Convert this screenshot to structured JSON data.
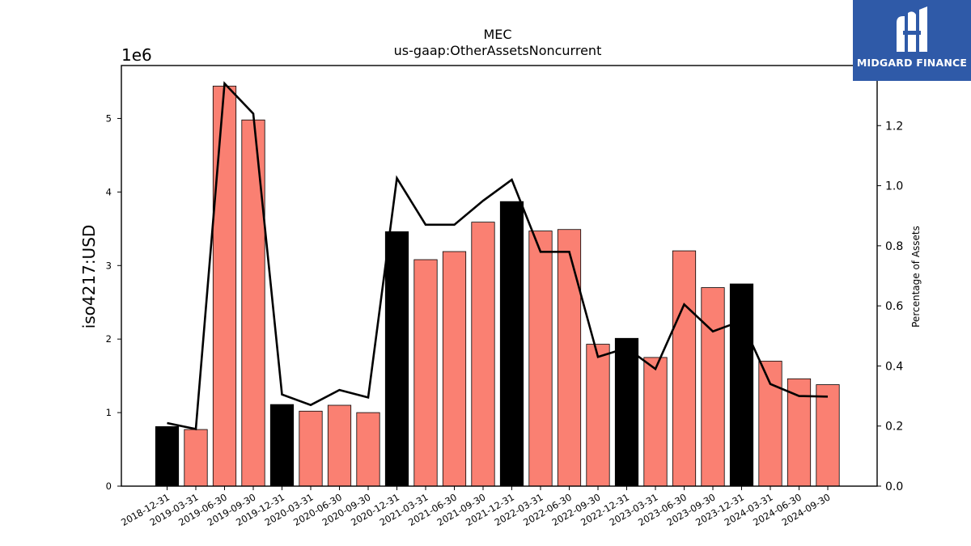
{
  "brand": {
    "name": "MIDGARD FINANCE"
  },
  "chart_data": {
    "type": "bar",
    "title": "MEC",
    "subtitle": "us-gaap:OtherAssetsNoncurrent",
    "ylabel": "iso4217:USD",
    "ylabel_right": "Percentage of Assets",
    "y_offset_label": "1e6",
    "ylim": [
      0,
      5.72
    ],
    "ylim_right": [
      0,
      1.4
    ],
    "yticks": [
      0,
      1,
      2,
      3,
      4,
      5
    ],
    "yticks_right": [
      "0.0",
      "0.2",
      "0.4",
      "0.6",
      "0.8",
      "1.0",
      "1.2"
    ],
    "categories": [
      "2018-12-31",
      "2019-03-31",
      "2019-06-30",
      "2019-09-30",
      "2019-12-31",
      "2020-03-31",
      "2020-06-30",
      "2020-09-30",
      "2020-12-31",
      "2021-03-31",
      "2021-06-30",
      "2021-09-30",
      "2021-12-31",
      "2022-03-31",
      "2022-06-30",
      "2022-09-30",
      "2022-12-31",
      "2023-03-31",
      "2023-06-30",
      "2023-09-30",
      "2023-12-31",
      "2024-03-31",
      "2024-06-30",
      "2024-09-30"
    ],
    "values": [
      0.81,
      0.77,
      5.44,
      4.98,
      1.11,
      1.02,
      1.1,
      1.0,
      3.46,
      3.08,
      3.19,
      3.59,
      3.87,
      3.47,
      3.49,
      1.93,
      2.01,
      1.75,
      3.2,
      2.7,
      2.75,
      1.7,
      1.46,
      1.38
    ],
    "year_end": [
      true,
      false,
      false,
      false,
      true,
      false,
      false,
      false,
      true,
      false,
      false,
      false,
      true,
      false,
      false,
      false,
      true,
      false,
      false,
      false,
      true,
      false,
      false,
      false
    ],
    "line_values": [
      0.21,
      0.19,
      1.34,
      1.24,
      0.305,
      0.27,
      0.32,
      0.295,
      1.025,
      0.87,
      0.87,
      0.95,
      1.02,
      0.78,
      0.78,
      0.43,
      0.46,
      0.39,
      0.605,
      0.515,
      0.55,
      0.34,
      0.3,
      0.298
    ],
    "colors": {
      "bar": "#fa8072",
      "bar_year_end": "#000000",
      "line": "#000000"
    },
    "grid": false
  }
}
